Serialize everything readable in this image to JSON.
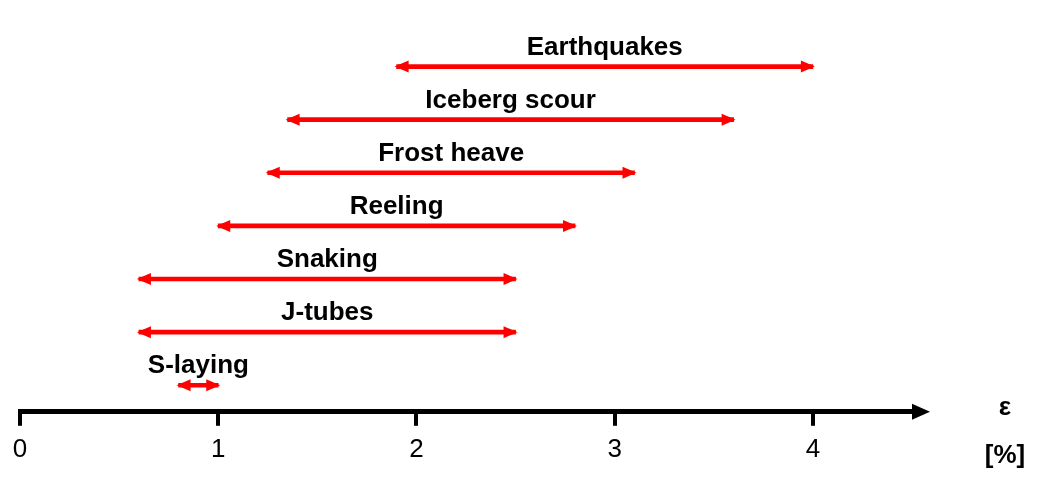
{
  "chart_data": {
    "type": "bar",
    "orientation": "horizontal",
    "categories": [
      "Earthquakes",
      "Iceberg scour",
      "Frost heave",
      "Reeling",
      "Snaking",
      "J-tubes",
      "S-laying"
    ],
    "base": [
      1.9,
      1.35,
      1.25,
      1.0,
      0.6,
      0.6,
      0.8
    ],
    "values": [
      2.1,
      2.25,
      1.85,
      1.8,
      1.9,
      1.9,
      0.2
    ],
    "color": "#ff0000",
    "xlabel": "ε [%]",
    "xlim": [
      0,
      4.5
    ],
    "xticks": [
      0,
      1,
      2,
      3,
      4
    ],
    "tick_labels": "x",
    "grid": false,
    "legend": false
  }
}
